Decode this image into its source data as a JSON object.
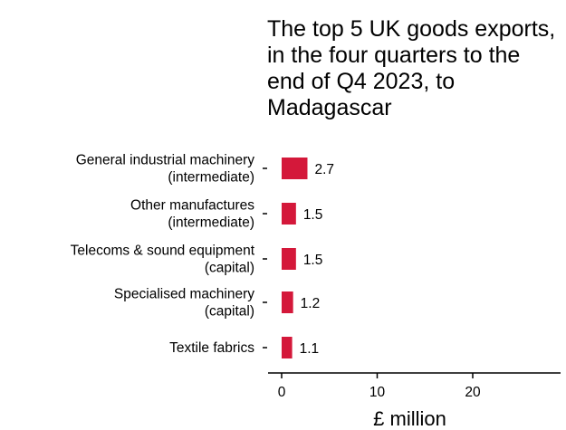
{
  "chart_data": {
    "type": "bar",
    "orientation": "horizontal",
    "title": "The top 5 UK goods exports, in the four quarters to the end of Q4 2023, to Madagascar",
    "categories": [
      [
        "General industrial machinery",
        "(intermediate)"
      ],
      [
        "Other manufactures",
        "(intermediate)"
      ],
      [
        "Telecoms & sound equipment",
        "(capital)"
      ],
      [
        "Specialised machinery",
        "(capital)"
      ],
      [
        "Textile fabrics"
      ]
    ],
    "values": [
      2.7,
      1.5,
      1.5,
      1.2,
      1.1
    ],
    "value_labels": [
      "2.7",
      "1.5",
      "1.5",
      "1.2",
      "1.1"
    ],
    "xlabel": "£ million",
    "xlim": [
      0,
      28
    ],
    "xticks": [
      0,
      10,
      20
    ],
    "tick_labels": [
      "0",
      "10",
      "20"
    ],
    "bar_color": "#d4183a",
    "grid": false
  }
}
